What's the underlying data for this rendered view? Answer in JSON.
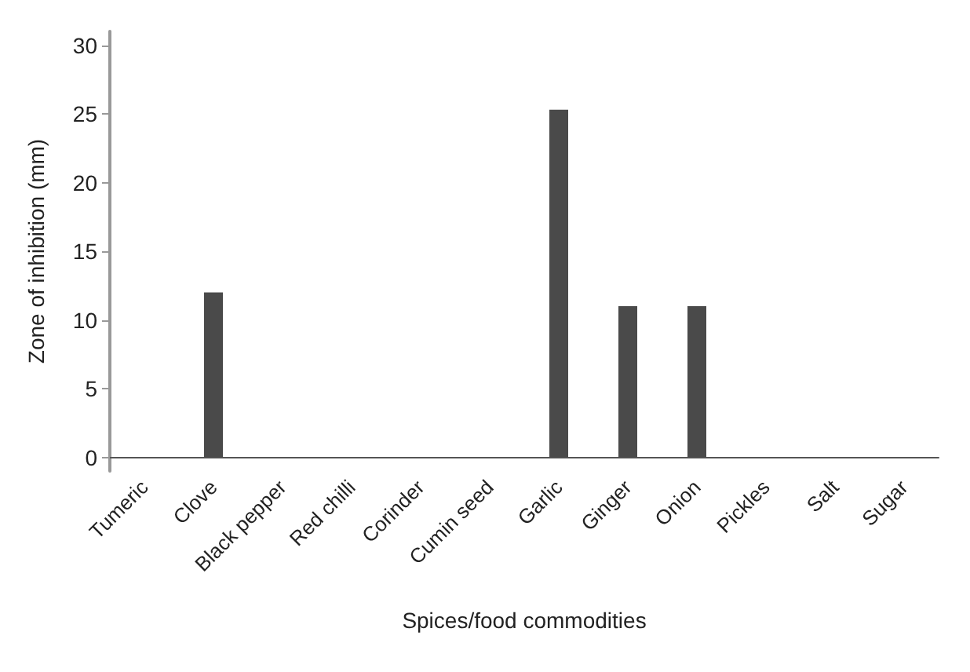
{
  "chart_data": {
    "type": "bar",
    "xlabel": "Spices/food commodities",
    "ylabel": "Zone of inhibition (mm)",
    "categories": [
      "Tumeric",
      "Clove",
      "Black pepper",
      "Red chilli",
      "Corinder",
      "Cumin seed",
      "Garlic",
      "Ginger",
      "Onion",
      "Pickles",
      "Salt",
      "Sugar"
    ],
    "series": [
      {
        "color": "#4a4a4a",
        "values": [
          0,
          12,
          0,
          0,
          0,
          0,
          25.3,
          11,
          11,
          0,
          0,
          0
        ]
      }
    ],
    "ylim": [
      -1,
      31
    ],
    "yticks": [
      0,
      5,
      10,
      15,
      20,
      25,
      30
    ],
    "grid": false
  }
}
